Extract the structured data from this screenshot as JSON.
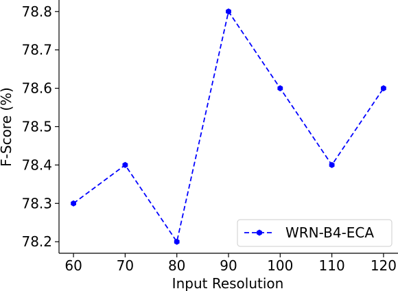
{
  "chart_data": {
    "type": "line",
    "x": [
      60,
      70,
      80,
      90,
      100,
      110,
      120
    ],
    "series": [
      {
        "name": "WRN-B4-ECA",
        "values": [
          78.3,
          78.4,
          78.2,
          78.8,
          78.6,
          78.4,
          78.6
        ],
        "color": "#0000ff",
        "line_style": "dashed",
        "marker": "hexagon"
      }
    ],
    "xlabel": "Input Resolution",
    "ylabel": "F-Score (%)",
    "xticks": [
      60,
      70,
      80,
      90,
      100,
      110,
      120
    ],
    "yticks": [
      78.2,
      78.3,
      78.4,
      78.5,
      78.6,
      78.7,
      78.8
    ],
    "xtick_labels": [
      "60",
      "70",
      "80",
      "90",
      "100",
      "110",
      "120"
    ],
    "ytick_labels": [
      "78.2",
      "78.3",
      "78.4",
      "78.5",
      "78.6",
      "78.7",
      "78.8"
    ],
    "xlim": [
      57.2,
      122.8
    ],
    "ylim": [
      78.17,
      78.83
    ],
    "grid": false,
    "legend_position": "lower-right"
  }
}
